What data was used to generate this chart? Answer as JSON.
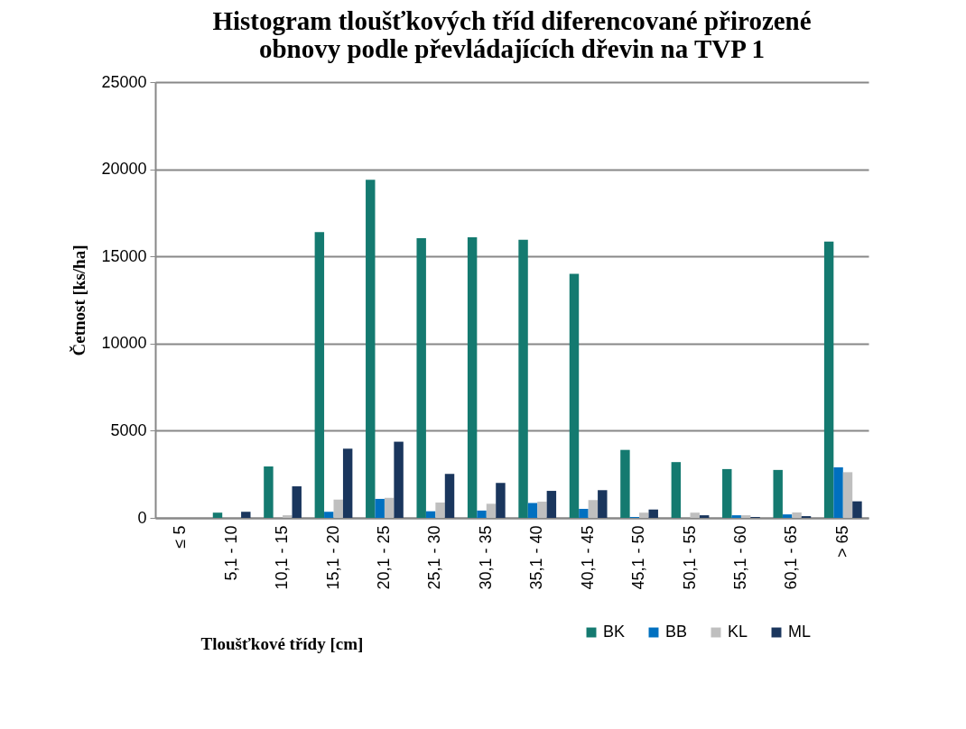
{
  "chart_data": {
    "type": "bar",
    "title": "Histogram tloušťkových tříd diferencované přirozené obnovy podle převládajících dřevin na TVP 1",
    "xlabel": "Tloušťkové třídy [cm]",
    "ylabel": "Četnost [ks/ha]",
    "categories": [
      "≤ 5",
      "5,1 - 10",
      "10,1 - 15",
      "15,1 - 20",
      "20,1 - 25",
      "25,1 - 30",
      "30,1 - 35",
      "35,1 - 40",
      "40,1 - 45",
      "45,1 - 50",
      "50,1 - 55",
      "55,1 - 60",
      "60,1 - 65",
      "> 65"
    ],
    "series": [
      {
        "name": "BK",
        "color": "#147a70",
        "values": [
          0,
          300,
          2950,
          16400,
          19400,
          16050,
          16100,
          15950,
          14000,
          3900,
          3200,
          2800,
          2750,
          15850
        ]
      },
      {
        "name": "BB",
        "color": "#0070c0",
        "values": [
          0,
          0,
          0,
          350,
          1090,
          380,
          420,
          850,
          520,
          50,
          0,
          150,
          200,
          2900
        ]
      },
      {
        "name": "KL",
        "color": "#bfbfbf",
        "values": [
          0,
          0,
          150,
          1050,
          1150,
          880,
          810,
          930,
          1020,
          300,
          300,
          150,
          310,
          2620
        ]
      },
      {
        "name": "ML",
        "color": "#1a365d",
        "values": [
          0,
          350,
          1810,
          3970,
          4370,
          2520,
          2000,
          1550,
          1590,
          480,
          150,
          50,
          100,
          950
        ]
      }
    ],
    "ylim": [
      0,
      25000
    ],
    "yticks": [
      0,
      5000,
      10000,
      15000,
      20000,
      25000
    ],
    "grid": "y",
    "legend": "bottom"
  }
}
